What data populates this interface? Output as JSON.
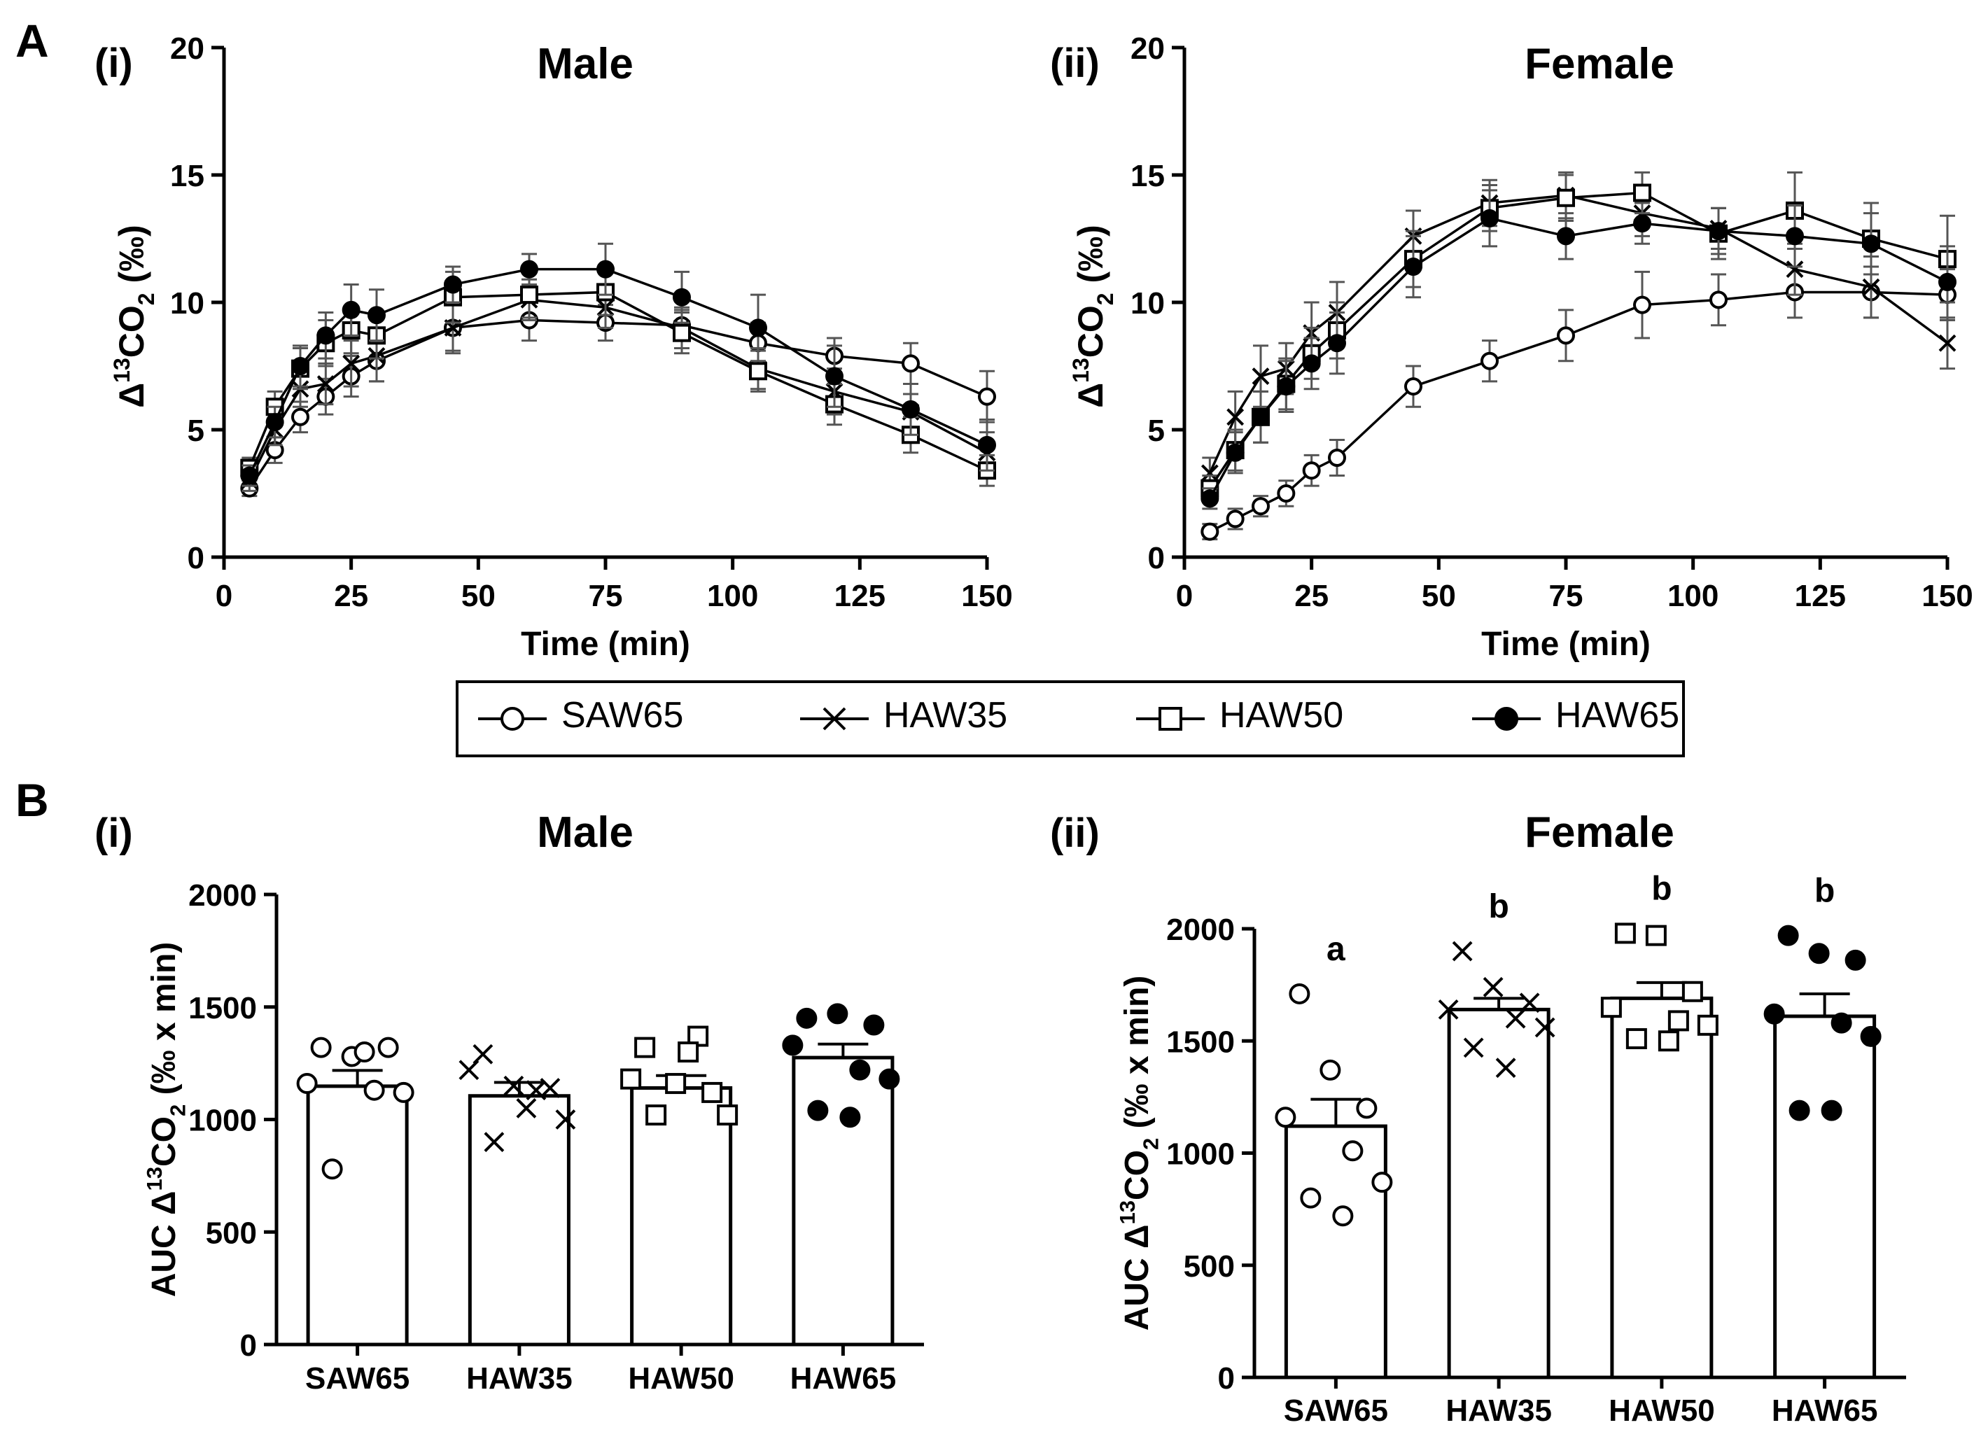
{
  "panel_labels": {
    "a": "A",
    "b": "B"
  },
  "subpanels": {
    "a_male": {
      "tag": "(i)",
      "title": "Male"
    },
    "a_female": {
      "tag": "(ii)",
      "title": "Female"
    },
    "b_male": {
      "tag": "(i)",
      "title": "Male"
    },
    "b_female": {
      "tag": "(ii)",
      "title": "Female"
    }
  },
  "legend": [
    {
      "name": "SAW65",
      "marker": "open-circle-icon"
    },
    {
      "name": "HAW35",
      "marker": "cross-x-icon"
    },
    {
      "name": "HAW50",
      "marker": "open-square-icon"
    },
    {
      "name": "HAW65",
      "marker": "filled-circle-icon"
    }
  ],
  "chart_data": [
    {
      "id": "a_male",
      "type": "line",
      "xlabel": "Time (min)",
      "ylabel_parts": [
        "Δ",
        "13",
        "CO",
        "2",
        " (‰)"
      ],
      "xlim": [
        0,
        150
      ],
      "ylim": [
        0,
        20
      ],
      "xticks": [
        0,
        25,
        50,
        75,
        100,
        125,
        150
      ],
      "yticks": [
        0,
        5,
        10,
        15,
        20
      ],
      "x": [
        5,
        10,
        15,
        20,
        25,
        30,
        45,
        60,
        75,
        90,
        105,
        120,
        135,
        150
      ],
      "series": [
        {
          "name": "SAW65",
          "marker": "open-circle",
          "values": [
            2.7,
            4.2,
            5.5,
            6.3,
            7.1,
            7.7,
            9.0,
            9.3,
            9.2,
            9.1,
            8.4,
            7.9,
            7.6,
            6.3
          ],
          "errors": [
            0.3,
            0.5,
            0.6,
            0.7,
            0.8,
            0.8,
            0.9,
            0.8,
            0.7,
            0.6,
            0.8,
            0.7,
            0.8,
            1.0
          ]
        },
        {
          "name": "HAW35",
          "marker": "cross",
          "values": [
            3.0,
            5.0,
            6.6,
            6.8,
            7.6,
            7.9,
            9.0,
            10.1,
            9.8,
            9.0,
            7.4,
            6.5,
            5.7,
            4.1
          ],
          "errors": [
            0.4,
            0.6,
            0.7,
            0.8,
            0.9,
            1.0,
            1.0,
            0.8,
            0.8,
            0.8,
            0.8,
            0.9,
            0.7,
            0.8
          ]
        },
        {
          "name": "HAW50",
          "marker": "open-square",
          "values": [
            3.5,
            5.9,
            7.4,
            8.4,
            8.9,
            8.7,
            10.2,
            10.3,
            10.4,
            8.8,
            7.3,
            6.0,
            4.8,
            3.4
          ],
          "errors": [
            0.4,
            0.6,
            0.8,
            0.9,
            0.9,
            0.9,
            1.0,
            0.9,
            0.9,
            0.8,
            0.8,
            0.8,
            0.7,
            0.6
          ]
        },
        {
          "name": "HAW65",
          "marker": "filled-circle",
          "values": [
            3.2,
            5.3,
            7.5,
            8.7,
            9.7,
            9.5,
            10.7,
            11.3,
            11.3,
            10.2,
            9.0,
            7.1,
            5.8,
            4.4
          ],
          "errors": [
            0.4,
            0.6,
            0.8,
            0.9,
            1.0,
            1.0,
            0.7,
            0.6,
            1.0,
            1.0,
            1.3,
            1.2,
            1.0,
            1.0
          ]
        }
      ]
    },
    {
      "id": "a_female",
      "type": "line",
      "xlabel": "Time (min)",
      "ylabel_parts": [
        "Δ",
        "13",
        "CO",
        "2",
        " (‰)"
      ],
      "xlim": [
        0,
        150
      ],
      "ylim": [
        0,
        20
      ],
      "xticks": [
        0,
        25,
        50,
        75,
        100,
        125,
        150
      ],
      "yticks": [
        0,
        5,
        10,
        15,
        20
      ],
      "x": [
        5,
        10,
        15,
        20,
        25,
        30,
        45,
        60,
        75,
        90,
        105,
        120,
        135,
        150
      ],
      "series": [
        {
          "name": "SAW65",
          "marker": "open-circle",
          "values": [
            1.0,
            1.5,
            2.0,
            2.5,
            3.4,
            3.9,
            6.7,
            7.7,
            8.7,
            9.9,
            10.1,
            10.4,
            10.4,
            10.3
          ],
          "errors": [
            0.3,
            0.4,
            0.4,
            0.5,
            0.6,
            0.7,
            0.8,
            0.8,
            1.0,
            1.3,
            1.0,
            1.0,
            1.0,
            1.0
          ]
        },
        {
          "name": "HAW35",
          "marker": "cross",
          "values": [
            3.3,
            5.5,
            7.1,
            7.4,
            8.8,
            9.6,
            12.6,
            13.9,
            14.2,
            13.5,
            12.9,
            11.3,
            10.6,
            8.4
          ],
          "errors": [
            0.6,
            1.0,
            1.2,
            1.0,
            1.2,
            1.2,
            1.0,
            0.9,
            0.9,
            0.9,
            0.8,
            1.0,
            1.2,
            1.0
          ]
        },
        {
          "name": "HAW50",
          "marker": "open-square",
          "values": [
            2.7,
            4.2,
            5.5,
            6.8,
            8.0,
            8.9,
            11.7,
            13.7,
            14.1,
            14.3,
            12.7,
            13.6,
            12.5,
            11.7
          ],
          "errors": [
            0.5,
            0.8,
            1.0,
            1.0,
            1.0,
            1.1,
            1.1,
            0.9,
            0.9,
            0.8,
            1.0,
            1.5,
            1.4,
            1.7
          ]
        },
        {
          "name": "HAW65",
          "marker": "filled-circle",
          "values": [
            2.3,
            4.1,
            5.5,
            6.7,
            7.6,
            8.4,
            11.4,
            13.3,
            12.6,
            13.1,
            12.8,
            12.6,
            12.3,
            10.8
          ],
          "errors": [
            0.4,
            0.8,
            1.0,
            1.0,
            1.0,
            1.2,
            1.2,
            1.1,
            0.9,
            0.8,
            0.9,
            1.2,
            1.2,
            1.4
          ]
        }
      ]
    },
    {
      "id": "b_male",
      "type": "bar",
      "ylabel_parts": [
        "AUC Δ",
        "13",
        "CO",
        "2",
        " (‰ x min)"
      ],
      "ylim": [
        0,
        2000
      ],
      "yticks": [
        0,
        500,
        1000,
        1500,
        2000
      ],
      "categories": [
        "SAW65",
        "HAW35",
        "HAW50",
        "HAW65"
      ],
      "markers": [
        "open-circle",
        "cross",
        "open-square",
        "filled-circle"
      ],
      "values": [
        1148,
        1105,
        1140,
        1275
      ],
      "errors": [
        70,
        60,
        55,
        60
      ],
      "points": [
        [
          1320,
          1280,
          1320,
          1160,
          1130,
          1120,
          780,
          1300
        ],
        [
          1290,
          1150,
          1140,
          1220,
          1130,
          1000,
          900,
          1050
        ],
        [
          1320,
          1160,
          1120,
          1180,
          1370,
          1020,
          1020,
          1300
        ],
        [
          1450,
          1470,
          1420,
          1330,
          1220,
          1180,
          1040,
          1010
        ]
      ],
      "letters": [
        "",
        "",
        "",
        ""
      ]
    },
    {
      "id": "b_female",
      "type": "bar",
      "ylabel_parts": [
        "AUC Δ",
        "13",
        "CO",
        "2",
        " (‰ x min)"
      ],
      "ylim": [
        0,
        2000
      ],
      "yticks": [
        0,
        500,
        1000,
        1500,
        2000
      ],
      "categories": [
        "SAW65",
        "HAW35",
        "HAW50",
        "HAW65"
      ],
      "markers": [
        "open-circle",
        "cross",
        "open-square",
        "filled-circle"
      ],
      "values": [
        1120,
        1640,
        1690,
        1610
      ],
      "errors": [
        120,
        50,
        70,
        100
      ],
      "points": [
        [
          1710,
          1370,
          1200,
          1160,
          1010,
          870,
          800,
          720
        ],
        [
          1900,
          1740,
          1670,
          1640,
          1600,
          1560,
          1470,
          1380
        ],
        [
          1980,
          1970,
          1720,
          1650,
          1590,
          1570,
          1510,
          1500
        ],
        [
          1970,
          1890,
          1860,
          1620,
          1580,
          1520,
          1190,
          1190
        ]
      ],
      "letters": [
        "a",
        "b",
        "b",
        "b"
      ]
    }
  ]
}
